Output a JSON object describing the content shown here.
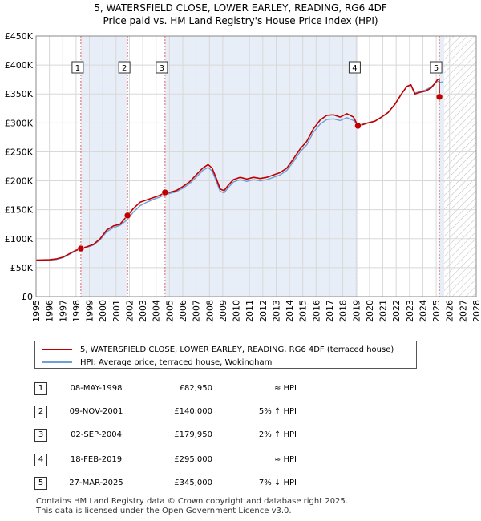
{
  "title_line1": "5, WATERSFIELD CLOSE, LOWER EARLEY, READING, RG6 4DF",
  "title_line2": "Price paid vs. HM Land Registry's House Price Index (HPI)",
  "colors": {
    "property": "#c00000",
    "hpi": "#6f9fd8",
    "shade": "#e8eef8",
    "grid": "#d8d8d8",
    "marker": "#e04040"
  },
  "chart_data": {
    "type": "line",
    "xlim": [
      1995,
      2028
    ],
    "ylim": [
      0,
      450000
    ],
    "y_ticks": [
      0,
      50000,
      100000,
      150000,
      200000,
      250000,
      300000,
      350000,
      400000,
      450000
    ],
    "y_tick_labels": [
      "£0",
      "£50K",
      "£100K",
      "£150K",
      "£200K",
      "£250K",
      "£300K",
      "£350K",
      "£400K",
      "£450K"
    ],
    "x_ticks": [
      1995,
      1996,
      1997,
      1998,
      1999,
      2000,
      2001,
      2002,
      2003,
      2004,
      2005,
      2006,
      2007,
      2008,
      2009,
      2010,
      2011,
      2012,
      2013,
      2014,
      2015,
      2016,
      2017,
      2018,
      2019,
      2020,
      2021,
      2022,
      2023,
      2024,
      2025,
      2026,
      2027,
      2028
    ],
    "data_end": 2025.6,
    "series": [
      {
        "name": "5, WATERSFIELD CLOSE, LOWER EARLEY, READING, RG6 4DF (terraced house)",
        "color": "#c00000",
        "points": [
          [
            1995.0,
            63000
          ],
          [
            1996.0,
            63500
          ],
          [
            1996.5,
            65000
          ],
          [
            1997.0,
            68000
          ],
          [
            1997.5,
            74000
          ],
          [
            1998.0,
            80000
          ],
          [
            1998.36,
            82950
          ],
          [
            1998.8,
            86000
          ],
          [
            1999.3,
            90000
          ],
          [
            1999.8,
            100000
          ],
          [
            2000.3,
            115000
          ],
          [
            2000.8,
            122000
          ],
          [
            2001.3,
            125000
          ],
          [
            2001.86,
            140000
          ],
          [
            2002.3,
            152000
          ],
          [
            2002.8,
            163000
          ],
          [
            2003.3,
            167000
          ],
          [
            2003.8,
            171000
          ],
          [
            2004.3,
            175000
          ],
          [
            2004.67,
            179950
          ],
          [
            2005.0,
            180000
          ],
          [
            2005.5,
            183000
          ],
          [
            2006.0,
            190000
          ],
          [
            2006.5,
            198000
          ],
          [
            2007.0,
            210000
          ],
          [
            2007.5,
            222000
          ],
          [
            2007.9,
            228000
          ],
          [
            2008.2,
            222000
          ],
          [
            2008.5,
            205000
          ],
          [
            2008.8,
            186000
          ],
          [
            2009.1,
            183000
          ],
          [
            2009.4,
            192000
          ],
          [
            2009.8,
            202000
          ],
          [
            2010.3,
            206000
          ],
          [
            2010.8,
            203000
          ],
          [
            2011.3,
            206000
          ],
          [
            2011.8,
            204000
          ],
          [
            2012.3,
            206000
          ],
          [
            2012.8,
            210000
          ],
          [
            2013.3,
            214000
          ],
          [
            2013.8,
            222000
          ],
          [
            2014.3,
            238000
          ],
          [
            2014.8,
            255000
          ],
          [
            2015.3,
            268000
          ],
          [
            2015.8,
            290000
          ],
          [
            2016.3,
            305000
          ],
          [
            2016.8,
            313000
          ],
          [
            2017.3,
            314000
          ],
          [
            2017.8,
            310000
          ],
          [
            2018.3,
            316000
          ],
          [
            2018.8,
            310000
          ],
          [
            2019.13,
            295000
          ],
          [
            2019.5,
            297000
          ],
          [
            2019.9,
            300000
          ],
          [
            2020.4,
            303000
          ],
          [
            2020.9,
            310000
          ],
          [
            2021.4,
            318000
          ],
          [
            2021.9,
            332000
          ],
          [
            2022.4,
            350000
          ],
          [
            2022.8,
            363000
          ],
          [
            2023.1,
            366000
          ],
          [
            2023.4,
            350000
          ],
          [
            2023.8,
            353000
          ],
          [
            2024.2,
            355000
          ],
          [
            2024.6,
            360000
          ],
          [
            2024.9,
            368000
          ],
          [
            2025.1,
            375000
          ],
          [
            2025.22,
            376000
          ],
          [
            2025.24,
            345000
          ],
          [
            2025.5,
            345000
          ]
        ]
      },
      {
        "name": "HPI: Average price, terraced house, Wokingham",
        "color": "#6f9fd8",
        "points": [
          [
            1995.0,
            62000
          ],
          [
            1996.0,
            63000
          ],
          [
            1996.5,
            64000
          ],
          [
            1997.0,
            67000
          ],
          [
            1997.5,
            73000
          ],
          [
            1998.0,
            79000
          ],
          [
            1998.36,
            82000
          ],
          [
            1998.8,
            85000
          ],
          [
            1999.3,
            89000
          ],
          [
            1999.8,
            98000
          ],
          [
            2000.3,
            112000
          ],
          [
            2000.8,
            119000
          ],
          [
            2001.3,
            123000
          ],
          [
            2001.86,
            133000
          ],
          [
            2002.3,
            146000
          ],
          [
            2002.8,
            157000
          ],
          [
            2003.3,
            163000
          ],
          [
            2003.8,
            168000
          ],
          [
            2004.3,
            172000
          ],
          [
            2004.67,
            176000
          ],
          [
            2005.0,
            178000
          ],
          [
            2005.5,
            181000
          ],
          [
            2006.0,
            187000
          ],
          [
            2006.5,
            195000
          ],
          [
            2007.0,
            206000
          ],
          [
            2007.5,
            218000
          ],
          [
            2007.9,
            223000
          ],
          [
            2008.2,
            217000
          ],
          [
            2008.5,
            200000
          ],
          [
            2008.8,
            182000
          ],
          [
            2009.1,
            179000
          ],
          [
            2009.4,
            188000
          ],
          [
            2009.8,
            198000
          ],
          [
            2010.3,
            202000
          ],
          [
            2010.8,
            199000
          ],
          [
            2011.3,
            202000
          ],
          [
            2011.8,
            200000
          ],
          [
            2012.3,
            202000
          ],
          [
            2012.8,
            206000
          ],
          [
            2013.3,
            210000
          ],
          [
            2013.8,
            218000
          ],
          [
            2014.3,
            233000
          ],
          [
            2014.8,
            250000
          ],
          [
            2015.3,
            262000
          ],
          [
            2015.8,
            284000
          ],
          [
            2016.3,
            298000
          ],
          [
            2016.8,
            306000
          ],
          [
            2017.3,
            307000
          ],
          [
            2017.8,
            304000
          ],
          [
            2018.3,
            309000
          ],
          [
            2018.8,
            304000
          ],
          [
            2019.13,
            296000
          ],
          [
            2019.5,
            298000
          ],
          [
            2019.9,
            300000
          ],
          [
            2020.4,
            303000
          ],
          [
            2020.9,
            310000
          ],
          [
            2021.4,
            318000
          ],
          [
            2021.9,
            332000
          ],
          [
            2022.4,
            350000
          ],
          [
            2022.8,
            363000
          ],
          [
            2023.1,
            366000
          ],
          [
            2023.4,
            352000
          ],
          [
            2023.8,
            354000
          ],
          [
            2024.2,
            357000
          ],
          [
            2024.6,
            362000
          ],
          [
            2024.9,
            368000
          ],
          [
            2025.1,
            372000
          ],
          [
            2025.3,
            370000
          ],
          [
            2025.5,
            371000
          ]
        ]
      }
    ],
    "transactions": [
      {
        "num": "1",
        "year": 1998.36,
        "price": 82950,
        "date": "08-MAY-1998",
        "price_label": "£82,950",
        "hpi_label": "≈ HPI"
      },
      {
        "num": "2",
        "year": 2001.86,
        "price": 140000,
        "date": "09-NOV-2001",
        "price_label": "£140,000",
        "hpi_label": "5% ↑ HPI"
      },
      {
        "num": "3",
        "year": 2004.67,
        "price": 179950,
        "date": "02-SEP-2004",
        "price_label": "£179,950",
        "hpi_label": "2% ↑ HPI"
      },
      {
        "num": "4",
        "year": 2019.13,
        "price": 295000,
        "date": "18-FEB-2019",
        "price_label": "£295,000",
        "hpi_label": "≈ HPI"
      },
      {
        "num": "5",
        "year": 2025.24,
        "price": 345000,
        "date": "27-MAR-2025",
        "price_label": "£345,000",
        "hpi_label": "7% ↓ HPI"
      }
    ],
    "shaded_periods": [
      [
        1998.36,
        2001.86
      ],
      [
        2004.67,
        2019.13
      ],
      [
        2025.24,
        2025.6
      ]
    ]
  },
  "footer_line1": "Contains HM Land Registry data © Crown copyright and database right 2025.",
  "footer_line2": "This data is licensed under the Open Government Licence v3.0."
}
